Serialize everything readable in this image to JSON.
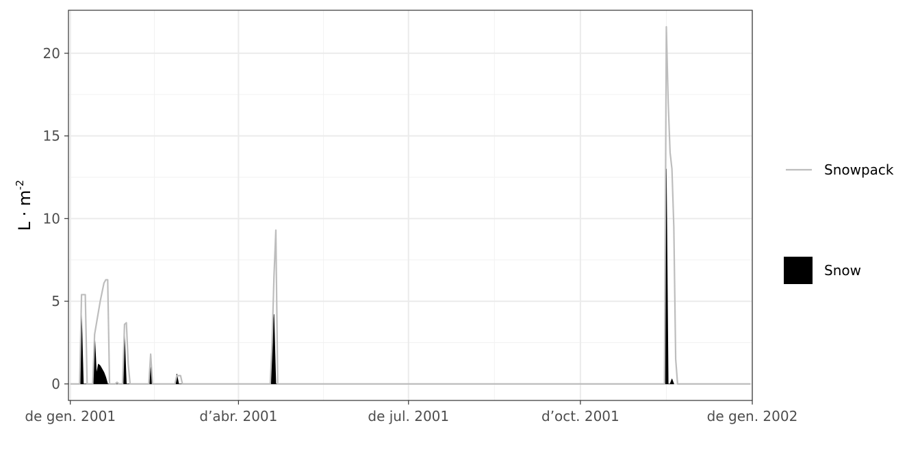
{
  "chart_data": {
    "type": "area",
    "title": "",
    "xlabel": "",
    "ylabel": "L · m",
    "ylabel_superscript": "-2",
    "x_range": [
      "2000-12-31",
      "2002-01-01"
    ],
    "ylim": [
      -1,
      22.6
    ],
    "grid": true,
    "legend_position": "right",
    "x_ticks": [
      {
        "date": "2001-01-01",
        "label": "de gen. 2001"
      },
      {
        "date": "2001-04-01",
        "label": "d’abr. 2001"
      },
      {
        "date": "2001-07-01",
        "label": "de jul. 2001"
      },
      {
        "date": "2001-10-01",
        "label": "d’oct. 2001"
      },
      {
        "date": "2002-01-01",
        "label": "de gen. 2002"
      }
    ],
    "y_ticks": [
      0,
      5,
      10,
      15,
      20
    ],
    "series": [
      {
        "name": "Snow",
        "type": "area",
        "color": "#000000",
        "points": [
          [
            "2001-01-06",
            0
          ],
          [
            "2001-01-07",
            4.2
          ],
          [
            "2001-01-08",
            0
          ],
          [
            "2001-01-13",
            0
          ],
          [
            "2001-01-14",
            3.0
          ],
          [
            "2001-01-15",
            0.6
          ],
          [
            "2001-01-16",
            1.2
          ],
          [
            "2001-01-17",
            1.1
          ],
          [
            "2001-01-18",
            0.9
          ],
          [
            "2001-01-19",
            0.7
          ],
          [
            "2001-01-20",
            0.4
          ],
          [
            "2001-01-21",
            0
          ],
          [
            "2001-01-29",
            0
          ],
          [
            "2001-01-30",
            3.0
          ],
          [
            "2001-01-31",
            0
          ],
          [
            "2001-02-12",
            0
          ],
          [
            "2001-02-13",
            1.0
          ],
          [
            "2001-02-14",
            0
          ],
          [
            "2001-02-26",
            0
          ],
          [
            "2001-02-27",
            0.6
          ],
          [
            "2001-02-28",
            0
          ],
          [
            "2001-04-18",
            0
          ],
          [
            "2001-04-19",
            2.5
          ],
          [
            "2001-04-20",
            4.2
          ],
          [
            "2001-04-21",
            0
          ],
          [
            "2001-11-15",
            0
          ],
          [
            "2001-11-16",
            13.0
          ],
          [
            "2001-11-17",
            0
          ],
          [
            "2001-11-18",
            0
          ],
          [
            "2001-11-19",
            0.3
          ],
          [
            "2001-11-20",
            0
          ]
        ]
      },
      {
        "name": "Snowpack",
        "type": "line",
        "color": "#bdbdbd",
        "points": [
          [
            "2001-01-01",
            0
          ],
          [
            "2001-01-06",
            0
          ],
          [
            "2001-01-07",
            5.4
          ],
          [
            "2001-01-09",
            5.4
          ],
          [
            "2001-01-10",
            0
          ],
          [
            "2001-01-13",
            0
          ],
          [
            "2001-01-14",
            3.0
          ],
          [
            "2001-01-17",
            5.0
          ],
          [
            "2001-01-19",
            6.1
          ],
          [
            "2001-01-20",
            6.3
          ],
          [
            "2001-01-21",
            6.3
          ],
          [
            "2001-01-22",
            0
          ],
          [
            "2001-01-25",
            0
          ],
          [
            "2001-01-26",
            0.1
          ],
          [
            "2001-01-27",
            0
          ],
          [
            "2001-01-29",
            0
          ],
          [
            "2001-01-30",
            3.6
          ],
          [
            "2001-01-31",
            3.7
          ],
          [
            "2001-02-01",
            1.2
          ],
          [
            "2001-02-02",
            0
          ],
          [
            "2001-02-12",
            0
          ],
          [
            "2001-02-13",
            1.8
          ],
          [
            "2001-02-14",
            0
          ],
          [
            "2001-02-26",
            0
          ],
          [
            "2001-02-27",
            0.5
          ],
          [
            "2001-03-01",
            0.5
          ],
          [
            "2001-03-02",
            0
          ],
          [
            "2001-04-18",
            0
          ],
          [
            "2001-04-19",
            2.5
          ],
          [
            "2001-04-20",
            6.5
          ],
          [
            "2001-04-21",
            9.3
          ],
          [
            "2001-04-22",
            0
          ],
          [
            "2001-11-15",
            0
          ],
          [
            "2001-11-16",
            21.6
          ],
          [
            "2001-11-17",
            17.0
          ],
          [
            "2001-11-18",
            14.0
          ],
          [
            "2001-11-19",
            13.0
          ],
          [
            "2001-11-20",
            9.5
          ],
          [
            "2001-11-21",
            1.5
          ],
          [
            "2001-11-22",
            0
          ],
          [
            "2001-12-31",
            0
          ]
        ]
      }
    ],
    "legend": [
      {
        "name": "Snowpack",
        "key": "line",
        "color": "#bdbdbd"
      },
      {
        "name": "Snow",
        "key": "fill",
        "color": "#000000"
      }
    ]
  }
}
